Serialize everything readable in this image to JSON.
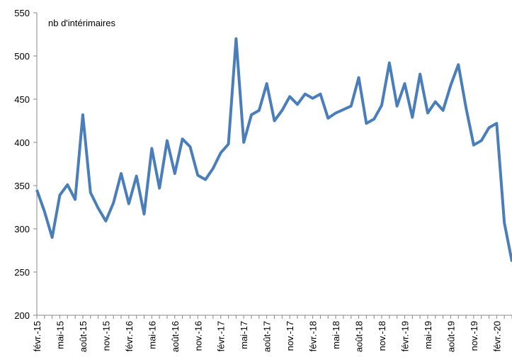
{
  "chart_data": {
    "type": "line",
    "categories": [
      "févr.-15",
      null,
      null,
      "mai-15",
      null,
      null,
      "août-15",
      null,
      null,
      "nov.-15",
      null,
      null,
      "févr.-16",
      null,
      null,
      "mai-16",
      null,
      null,
      "août-16",
      null,
      null,
      "nov.-16",
      null,
      null,
      "févr.-17",
      null,
      null,
      "mai-17",
      null,
      null,
      "août-17",
      null,
      null,
      "nov.-17",
      null,
      null,
      "févr.-18",
      null,
      null,
      "mai-18",
      null,
      null,
      "août-18",
      null,
      null,
      "nov.-18",
      null,
      null,
      "févr.-19",
      null,
      null,
      "mai-19",
      null,
      null,
      "août-19",
      null,
      null,
      "nov.-19",
      null,
      null,
      "févr.-20",
      null,
      null
    ],
    "series": [
      {
        "name": "nb d'intérimaires",
        "color": "#4a7ebb",
        "values": [
          345,
          320,
          290,
          339,
          351,
          334,
          432,
          342,
          324,
          309,
          330,
          364,
          329,
          361,
          317,
          393,
          347,
          402,
          364,
          404,
          395,
          362,
          357,
          370,
          388,
          398,
          520,
          400,
          432,
          437,
          468,
          425,
          437,
          453,
          444,
          456,
          451,
          456,
          428,
          434,
          438,
          442,
          475,
          422,
          427,
          443,
          492,
          442,
          468,
          429,
          479,
          434,
          447,
          437,
          466,
          490,
          440,
          397,
          402,
          417,
          422,
          307,
          262
        ]
      }
    ],
    "ylim": [
      200,
      550
    ],
    "yticks": [
      200,
      250,
      300,
      350,
      400,
      450,
      500,
      550
    ],
    "grid": false
  }
}
